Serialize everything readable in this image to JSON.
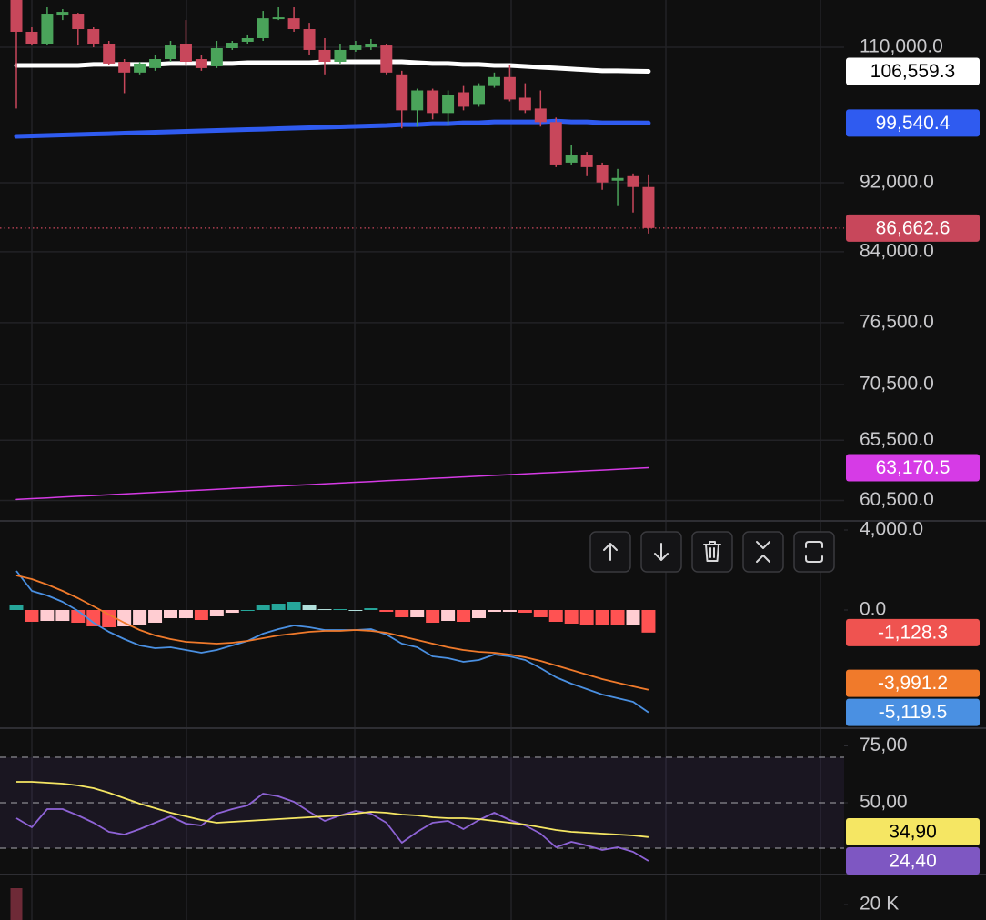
{
  "chart_data": [
    {
      "type": "candlestick",
      "log_scale": true,
      "grid": true,
      "up_color": "#4aa35a",
      "down_color": "#c8475b",
      "open": [
        117080,
        112270,
        110530,
        114710,
        114990,
        112670,
        110530,
        107910,
        106390,
        107020,
        108300,
        110530,
        108300,
        107270,
        109870,
        110800,
        111330,
        114160,
        114290,
        112670,
        109610,
        107910,
        109610,
        110000,
        110260,
        106140,
        101220,
        103910,
        100860,
        103660,
        102070,
        104520,
        105760,
        102920,
        101460,
        99660,
        94470,
        95370,
        94130,
        92250,
        92800,
        91480
      ],
      "high": [
        117080,
        112940,
        115960,
        115680,
        115120,
        112940,
        110930,
        108300,
        107910,
        108950,
        110930,
        114020,
        108950,
        110930,
        110930,
        111870,
        115400,
        115960,
        115960,
        113610,
        111330,
        110530,
        110930,
        111200,
        110530,
        106640,
        104150,
        104150,
        103910,
        104520,
        104900,
        106390,
        107400,
        104900,
        103910,
        100260,
        96750,
        95820,
        94470,
        93690,
        93130,
        93020
      ],
      "low": [
        101460,
        110260,
        110260,
        114020,
        110260,
        110000,
        107400,
        103540,
        106140,
        106640,
        107910,
        107400,
        106640,
        107020,
        109610,
        110530,
        110930,
        114020,
        112270,
        108950,
        106140,
        107660,
        109350,
        109610,
        106140,
        98840,
        99070,
        100020,
        99310,
        101220,
        101700,
        104280,
        102430,
        100860,
        99070,
        93910,
        94240,
        92800,
        91150,
        89210,
        88460,
        86040
      ],
      "close": [
        112270,
        110530,
        114990,
        115260,
        112670,
        110530,
        107660,
        106390,
        107660,
        108300,
        110260,
        107910,
        107020,
        109870,
        110660,
        111330,
        114290,
        114430,
        112670,
        109610,
        107910,
        109610,
        110260,
        110530,
        106390,
        101220,
        103910,
        100860,
        103290,
        101700,
        104520,
        105760,
        102680,
        101220,
        99660,
        94240,
        95370,
        93910,
        92030,
        92580,
        91480,
        86662.6
      ],
      "close_label": "86,662.6",
      "series": [
        {
          "color": "#ffffff",
          "label_text_color": "#000000",
          "last_label": "106,559.3",
          "values": [
            107400,
            107400,
            107400,
            107400,
            107400,
            107530,
            107530,
            107530,
            107530,
            107530,
            107660,
            107660,
            107660,
            107660,
            107660,
            107780,
            107780,
            107780,
            107780,
            107780,
            107910,
            107910,
            107910,
            107910,
            107910,
            107910,
            107780,
            107660,
            107660,
            107530,
            107530,
            107400,
            107400,
            107270,
            107140,
            107020,
            106890,
            106770,
            106640,
            106640,
            106600,
            106559.3
          ]
        },
        {
          "color": "#2f5bf0",
          "label_text_color": "#ffffff",
          "last_label": "99,540.4",
          "values": [
            97800,
            97860,
            97920,
            97980,
            98040,
            98100,
            98150,
            98210,
            98270,
            98330,
            98390,
            98450,
            98510,
            98570,
            98630,
            98690,
            98740,
            98800,
            98860,
            98920,
            98980,
            99040,
            99100,
            99160,
            99220,
            99330,
            99330,
            99450,
            99450,
            99570,
            99570,
            99690,
            99690,
            99690,
            99690,
            99800,
            99690,
            99690,
            99570,
            99570,
            99570,
            99540.4
          ]
        },
        {
          "color": "#d63be6",
          "label_text_color": "#ffffff",
          "last_label": "63,170.5",
          "width": 1.5,
          "values": [
            60580,
            60643,
            60706,
            60769,
            60832,
            60895,
            60958,
            61021,
            61084,
            61147,
            61210,
            61273,
            61336,
            61399,
            61462,
            61525,
            61588,
            61651,
            61714,
            61777,
            61840,
            61903,
            61966,
            62029,
            62092,
            62155,
            62218,
            62281,
            62344,
            62407,
            62470,
            62533,
            62596,
            62659,
            62722,
            62785,
            62848,
            62911,
            62974,
            63037,
            63100,
            63170.5
          ]
        }
      ],
      "ylim": [
        58960,
        117080
      ],
      "yticks": [
        {
          "value": 110000,
          "label": "110,000.0"
        },
        {
          "value": 92000,
          "label": "92,000.0"
        },
        {
          "value": 84000,
          "label": "84,000.0"
        },
        {
          "value": 76500,
          "label": "76,500.0"
        },
        {
          "value": 70500,
          "label": "70,500.0"
        },
        {
          "value": 65500,
          "label": "65,500.0"
        },
        {
          "value": 60500,
          "label": "60,500.0"
        }
      ]
    },
    {
      "type": "macd",
      "histogram": {
        "colors": [
          "#26a69a",
          "#b2dfdb",
          "#ff5252",
          "#ffcdd2"
        ],
        "label_color": "#ef5350",
        "last_label": "-1,128.3",
        "values": [
          228,
          -590,
          -546,
          -546,
          -636,
          -818,
          -864,
          -819,
          -773,
          -636,
          -409,
          -409,
          -500,
          -318,
          -137,
          0,
          227,
          318,
          409,
          227,
          45,
          45,
          0,
          90,
          -91,
          -364,
          -364,
          -636,
          -545,
          -591,
          -409,
          -91,
          -91,
          -136,
          -364,
          -591,
          -682,
          -728,
          -772,
          -773,
          -773,
          -1128.3
        ]
      },
      "series": [
        {
          "color": "#4a90e2",
          "last_label": "-5,119.5",
          "values": [
            1955,
            955,
            727,
            409,
            -45,
            -636,
            -1091,
            -1455,
            -1773,
            -1909,
            -1864,
            -2000,
            -2136,
            -2000,
            -1773,
            -1545,
            -1182,
            -955,
            -773,
            -864,
            -1000,
            -1000,
            -1000,
            -955,
            -1227,
            -1682,
            -1864,
            -2318,
            -2409,
            -2591,
            -2500,
            -2227,
            -2318,
            -2500,
            -2909,
            -3364,
            -3682,
            -3955,
            -4227,
            -4409,
            -4591,
            -5119.5
          ]
        },
        {
          "color": "#f07a2b",
          "last_label": "-3,991.2",
          "values": [
            1727,
            1545,
            1273,
            955,
            591,
            182,
            -227,
            -636,
            -1000,
            -1273,
            -1455,
            -1591,
            -1636,
            -1682,
            -1636,
            -1545,
            -1409,
            -1273,
            -1182,
            -1091,
            -1045,
            -1045,
            -1000,
            -1045,
            -1136,
            -1318,
            -1500,
            -1682,
            -1864,
            -2000,
            -2091,
            -2136,
            -2227,
            -2364,
            -2545,
            -2773,
            -3000,
            -3227,
            -3455,
            -3636,
            -3818,
            -3991.2
          ]
        }
      ],
      "ylim": [
        -5864,
        4364
      ],
      "yticks": [
        {
          "value": 4000,
          "label": "4,000.0"
        },
        {
          "value": 0,
          "label": "0.0"
        }
      ]
    },
    {
      "type": "rsi",
      "levels": [
        70,
        50,
        30
      ],
      "band_color": "#7e57c2",
      "series": [
        {
          "color": "#8e63d6",
          "label_color": "#7e57c2",
          "label_text_color": "#ffffff",
          "last_label": "24,40",
          "values": [
            43.2,
            39.2,
            47.2,
            47.2,
            44.4,
            41.2,
            37.2,
            36.0,
            38.4,
            41.2,
            44.0,
            40.8,
            40.0,
            45.2,
            47.2,
            48.8,
            54.0,
            52.8,
            50.4,
            46.0,
            42.0,
            44.4,
            46.4,
            45.2,
            41.2,
            32.4,
            37.2,
            41.2,
            42.0,
            38.4,
            42.4,
            45.6,
            42.4,
            40.0,
            36.4,
            30.4,
            32.8,
            31.2,
            29.2,
            30.4,
            28.4,
            24.4
          ]
        },
        {
          "color": "#f5e663",
          "label_color": "#f5e663",
          "label_text_color": "#000000",
          "last_label": "34,90",
          "values": [
            59.2,
            59.2,
            58.8,
            58.4,
            57.6,
            56.4,
            54.4,
            52.0,
            49.6,
            47.6,
            45.6,
            44.0,
            42.4,
            41.2,
            41.6,
            42.0,
            42.4,
            42.8,
            43.2,
            43.6,
            44.0,
            44.4,
            45.2,
            46.0,
            45.6,
            44.8,
            44.4,
            43.6,
            43.2,
            43.2,
            42.8,
            42.0,
            41.2,
            40.4,
            39.2,
            38.0,
            37.2,
            36.8,
            36.4,
            36.0,
            35.6,
            34.9
          ]
        }
      ],
      "ylim": [
        19.2,
        82
      ],
      "yticks": [
        {
          "value": 75,
          "label": "75,00"
        },
        {
          "value": 50,
          "label": "50,00"
        }
      ]
    },
    {
      "type": "volume",
      "color": "#6e2a37",
      "values": [
        41180
      ],
      "ylim": [
        0,
        57650
      ],
      "yticks": [
        {
          "value": 20000,
          "label": "20 K"
        }
      ]
    }
  ]
}
